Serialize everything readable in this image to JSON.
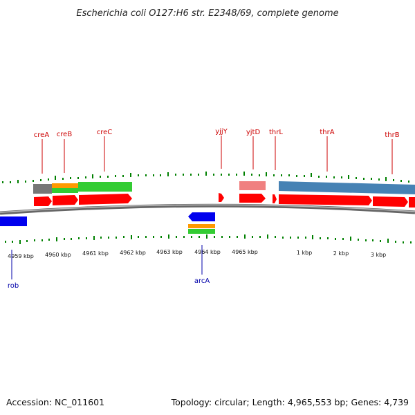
{
  "title": "Escherichia coli O127:H6 str. E2348/69, complete genome",
  "footer": {
    "accession": "Accession: NC_011601",
    "summary": "Topology: circular; Length: 4,965,553 bp; Genes: 4,739"
  },
  "colors": {
    "gene_red": "#ff0000",
    "gene_blue": "#0000ee",
    "feature_green": "#33cc33",
    "feature_orange": "#ff9900",
    "feature_gray": "#777777",
    "feature_pink": "#f08080",
    "feature_steelblue": "#4682b4",
    "tick_green": "#008000",
    "label_red": "#cc0000",
    "label_blue": "#0000aa",
    "backbone": "#888888"
  },
  "kbp_labels": [
    "4959 kbp",
    "4960 kbp",
    "4961 kbp",
    "4962 kbp",
    "4963 kbp",
    "4964 kbp",
    "4965 kbp",
    "1 kbp",
    "2 kbp",
    "3 kbp"
  ],
  "top_gene_labels": [
    "creA",
    "creB",
    "creC",
    "yjjY",
    "yjtD",
    "thrL",
    "thrA",
    "thrB"
  ],
  "bottom_gene_labels": [
    "rob",
    "arcA"
  ]
}
